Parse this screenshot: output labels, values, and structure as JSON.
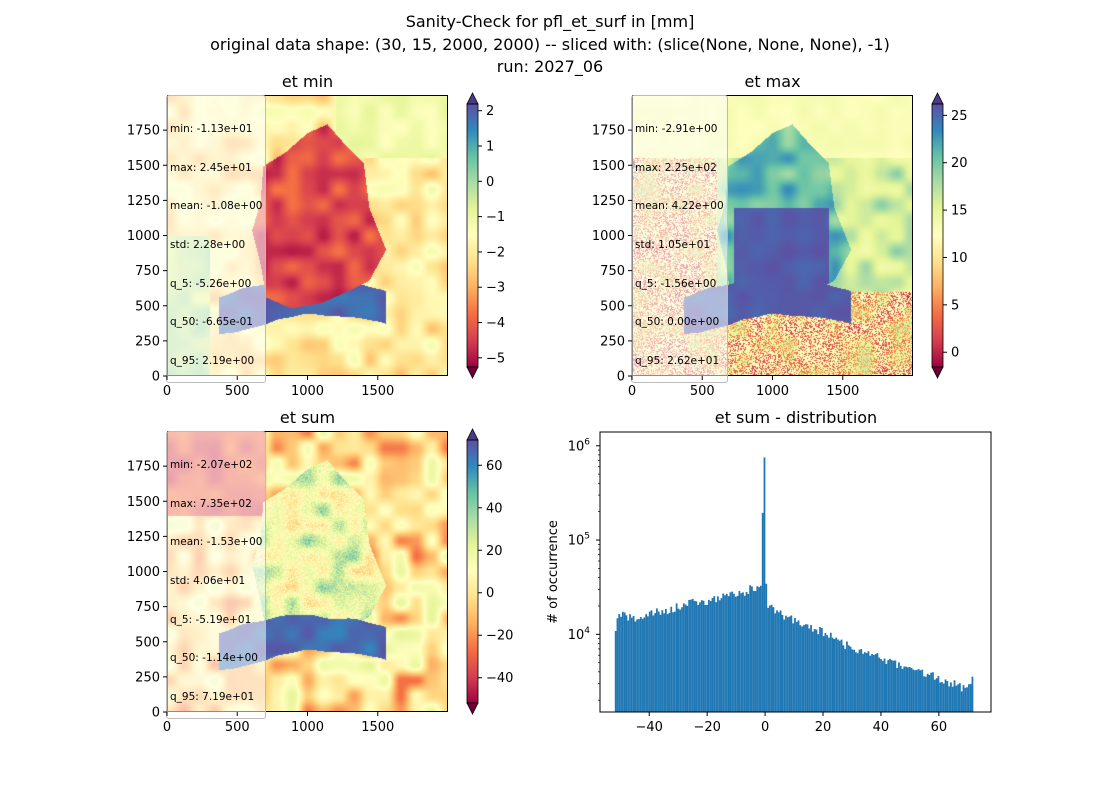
{
  "suptitle": {
    "line1": "Sanity-Check for pfl_et_surf in [mm]",
    "line2": "original data shape: (30, 15, 2000, 2000) -- sliced with: (slice(None, None, None), -1)",
    "line3": "run: 2027_06"
  },
  "colors": {
    "cmap_spectral": [
      "#9e0142",
      "#d53e4f",
      "#f46d43",
      "#fdae61",
      "#fee08b",
      "#ffffbf",
      "#e6f598",
      "#abdda4",
      "#66c2a5",
      "#3288bd",
      "#5e4fa2"
    ],
    "under": "#6e0035",
    "over": "#4a3a8a",
    "histogram_bar": "#1f77b4"
  },
  "chart_data": [
    {
      "type": "heatmap",
      "title": "et min",
      "xlabel": "",
      "ylabel": "",
      "xlim": [
        0,
        2000
      ],
      "ylim": [
        0,
        2000
      ],
      "xticks": [
        0,
        500,
        1000,
        1500
      ],
      "yticks": [
        0,
        250,
        500,
        750,
        1000,
        1250,
        1500,
        1750
      ],
      "colorbar": {
        "vmin": -5.26,
        "vmax": 2.19,
        "ticks": [
          "-5",
          "-4",
          "-3",
          "-2",
          "-1",
          "0",
          "1",
          "2"
        ],
        "extend": "both"
      },
      "stats": [
        "min: -1.13e+01",
        "max: 2.45e+01",
        "mean: -1.08e+00",
        "std: 2.28e+00",
        "q_5: -5.26e+00",
        "q_50: -6.65e-01",
        "q_95: 2.19e+00"
      ]
    },
    {
      "type": "heatmap",
      "title": "et max",
      "xlabel": "",
      "ylabel": "",
      "xlim": [
        0,
        2000
      ],
      "ylim": [
        0,
        2000
      ],
      "xticks": [
        0,
        500,
        1000,
        1500
      ],
      "yticks": [
        0,
        250,
        500,
        750,
        1000,
        1250,
        1500,
        1750
      ],
      "colorbar": {
        "vmin": -1.56,
        "vmax": 26.2,
        "ticks": [
          "0",
          "5",
          "10",
          "15",
          "20",
          "25"
        ],
        "extend": "both"
      },
      "stats": [
        "min: -2.91e+00",
        "max: 2.25e+02",
        "mean: 4.22e+00",
        "std: 1.05e+01",
        "q_5: -1.56e+00",
        "q_50: 0.00e+00",
        "q_95: 2.62e+01"
      ]
    },
    {
      "type": "heatmap",
      "title": "et sum",
      "xlabel": "",
      "ylabel": "",
      "xlim": [
        0,
        2000
      ],
      "ylim": [
        0,
        2000
      ],
      "xticks": [
        0,
        500,
        1000,
        1500
      ],
      "yticks": [
        0,
        250,
        500,
        750,
        1000,
        1250,
        1500,
        1750
      ],
      "colorbar": {
        "vmin": -51.9,
        "vmax": 71.9,
        "ticks": [
          "-40",
          "-20",
          "0",
          "20",
          "40",
          "60"
        ],
        "extend": "both"
      },
      "stats": [
        "min: -2.07e+02",
        "max: 7.35e+02",
        "mean: -1.53e+00",
        "std: 4.06e+01",
        "q_5: -5.19e+01",
        "q_50: -1.14e+00",
        "q_95: 7.19e+01"
      ]
    },
    {
      "type": "bar",
      "title": "et sum - distribution",
      "xlabel": "",
      "ylabel": "# of occurrence",
      "yscale": "log",
      "xlim": [
        -57,
        78
      ],
      "ylim": [
        1500,
        1400000
      ],
      "xticks": [
        "-40",
        "-20",
        "0",
        "20",
        "40",
        "60"
      ],
      "yticks": [
        10000,
        100000,
        1000000
      ],
      "bins": {
        "start": -51.9,
        "end": 71.9,
        "count": 200
      },
      "shape_points": [
        [
          -51.9,
          10500
        ],
        [
          -50.5,
          16000
        ],
        [
          -45,
          14500
        ],
        [
          -40,
          16500
        ],
        [
          -35,
          17500
        ],
        [
          -30,
          19500
        ],
        [
          -25,
          22000
        ],
        [
          -20,
          22000
        ],
        [
          -15,
          25000
        ],
        [
          -10,
          27000
        ],
        [
          -5,
          30000
        ],
        [
          -1.5,
          31000
        ],
        [
          -0.3,
          830000
        ],
        [
          0.5,
          22000
        ],
        [
          3,
          17500
        ],
        [
          10,
          14000
        ],
        [
          20,
          10500
        ],
        [
          30,
          7200
        ],
        [
          40,
          5600
        ],
        [
          50,
          4300
        ],
        [
          60,
          3400
        ],
        [
          65,
          3000
        ],
        [
          70,
          2500
        ],
        [
          71.9,
          3800
        ]
      ]
    }
  ]
}
